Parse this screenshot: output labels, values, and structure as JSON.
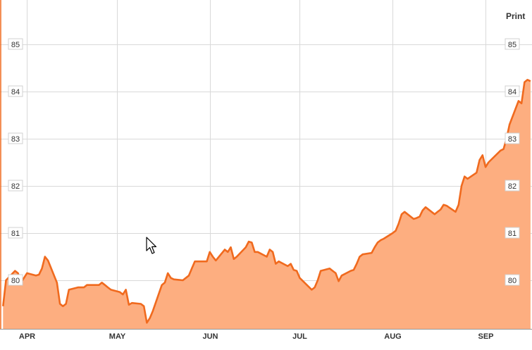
{
  "toolbar": {
    "print_label": "Print"
  },
  "colors": {
    "line": "#f06a1e",
    "area": "#fdae80",
    "grid": "#d9d9d9"
  },
  "cursor": {
    "icon": "mouse-pointer-icon"
  },
  "chart_data": {
    "type": "area",
    "title": "",
    "xlabel": "",
    "ylabel": "",
    "ylim": [
      79,
      85.7
    ],
    "yticks": [
      80,
      81,
      82,
      83,
      84,
      85
    ],
    "x_month_labels": [
      "APR",
      "MAY",
      "JUN",
      "JUL",
      "AUG",
      "SEP"
    ],
    "grid": true,
    "x": [
      "2011-03-24",
      "2011-03-25",
      "2011-03-28",
      "2011-03-29",
      "2011-03-30",
      "2011-03-31",
      "2011-04-01",
      "2011-04-04",
      "2011-04-05",
      "2011-04-06",
      "2011-04-07",
      "2011-04-08",
      "2011-04-11",
      "2011-04-12",
      "2011-04-13",
      "2011-04-14",
      "2011-04-15",
      "2011-04-18",
      "2011-04-19",
      "2011-04-20",
      "2011-04-21",
      "2011-04-25",
      "2011-04-26",
      "2011-04-27",
      "2011-04-28",
      "2011-04-29",
      "2011-05-02",
      "2011-05-03",
      "2011-05-04",
      "2011-05-05",
      "2011-05-06",
      "2011-05-09",
      "2011-05-10",
      "2011-05-11",
      "2011-05-12",
      "2011-05-13",
      "2011-05-16",
      "2011-05-17",
      "2011-05-18",
      "2011-05-19",
      "2011-05-20",
      "2011-05-23",
      "2011-05-24",
      "2011-05-25",
      "2011-05-26",
      "2011-05-27",
      "2011-05-31",
      "2011-06-01",
      "2011-06-02",
      "2011-06-03",
      "2011-06-06",
      "2011-06-07",
      "2011-06-08",
      "2011-06-09",
      "2011-06-10",
      "2011-06-13",
      "2011-06-14",
      "2011-06-15",
      "2011-06-16",
      "2011-06-17",
      "2011-06-20",
      "2011-06-21",
      "2011-06-22",
      "2011-06-23",
      "2011-06-24",
      "2011-06-27",
      "2011-06-28",
      "2011-06-29",
      "2011-06-30",
      "2011-07-01",
      "2011-07-05",
      "2011-07-06",
      "2011-07-07",
      "2011-07-08",
      "2011-07-11",
      "2011-07-12",
      "2011-07-13",
      "2011-07-14",
      "2011-07-15",
      "2011-07-18",
      "2011-07-19",
      "2011-07-20",
      "2011-07-21",
      "2011-07-22",
      "2011-07-25",
      "2011-07-26",
      "2011-07-27",
      "2011-07-28",
      "2011-07-29",
      "2011-08-01",
      "2011-08-02",
      "2011-08-03",
      "2011-08-04",
      "2011-08-05",
      "2011-08-08",
      "2011-08-09",
      "2011-08-10",
      "2011-08-11",
      "2011-08-12",
      "2011-08-15",
      "2011-08-16",
      "2011-08-17",
      "2011-08-18",
      "2011-08-19",
      "2011-08-22",
      "2011-08-23",
      "2011-08-24",
      "2011-08-25",
      "2011-08-26",
      "2011-08-29",
      "2011-08-30",
      "2011-08-31",
      "2011-09-01",
      "2011-09-02",
      "2011-09-06",
      "2011-09-07",
      "2011-09-08",
      "2011-09-09",
      "2011-09-12",
      "2011-09-13",
      "2011-09-14",
      "2011-09-15",
      "2011-09-16"
    ],
    "series": [
      {
        "values": [
          79.45,
          80.0,
          80.2,
          80.15,
          79.95,
          80.05,
          80.15,
          80.1,
          80.12,
          80.25,
          80.5,
          80.42,
          79.95,
          79.5,
          79.45,
          79.5,
          79.8,
          79.85,
          79.85,
          79.85,
          79.9,
          79.9,
          79.95,
          79.9,
          79.85,
          79.8,
          79.75,
          79.7,
          79.8,
          79.48,
          79.52,
          79.5,
          79.45,
          79.1,
          79.2,
          79.35,
          79.9,
          79.95,
          80.15,
          80.05,
          80.02,
          80.0,
          80.05,
          80.1,
          80.25,
          80.4,
          80.4,
          80.6,
          80.5,
          80.42,
          80.65,
          80.6,
          80.7,
          80.45,
          80.5,
          80.7,
          80.82,
          80.8,
          80.6,
          80.6,
          80.5,
          80.65,
          80.6,
          80.35,
          80.4,
          80.3,
          80.35,
          80.22,
          80.2,
          80.05,
          79.8,
          79.85,
          80.0,
          80.2,
          80.25,
          80.2,
          80.15,
          79.98,
          80.1,
          80.2,
          80.22,
          80.35,
          80.5,
          80.55,
          80.58,
          80.7,
          80.8,
          80.85,
          80.88,
          81.0,
          81.05,
          81.2,
          81.4,
          81.45,
          81.3,
          81.32,
          81.35,
          81.48,
          81.55,
          81.4,
          81.45,
          81.5,
          81.6,
          81.58,
          81.45,
          81.6,
          82.0,
          82.2,
          82.15,
          82.28,
          82.55,
          82.65,
          82.4,
          82.5,
          82.75,
          82.78,
          83.0,
          83.3,
          83.8,
          83.75,
          84.2,
          84.25,
          84.22
        ]
      }
    ]
  }
}
